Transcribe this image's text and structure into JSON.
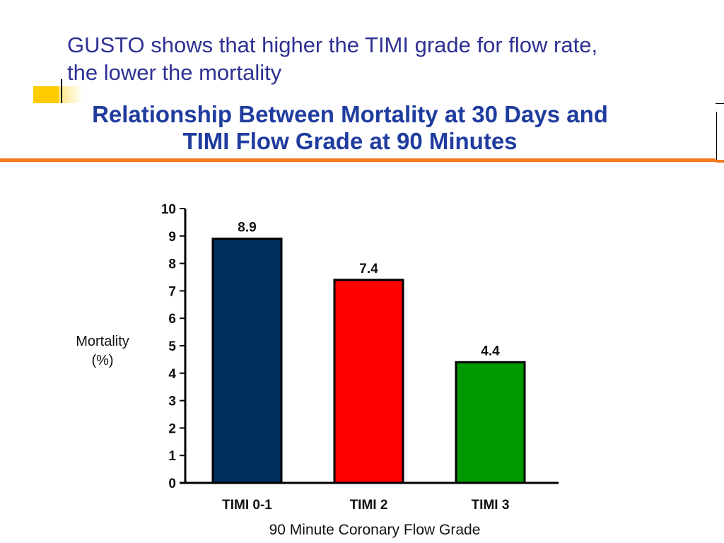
{
  "slide": {
    "heading_line1": "GUSTO shows that higher the TIMI grade for flow rate,",
    "heading_line2": "the lower the mortality"
  },
  "chart_data": {
    "type": "bar",
    "title_line1": "Relationship Between Mortality at 30 Days and",
    "title_line2": "TIMI Flow Grade at 90 Minutes",
    "categories": [
      "TIMI  0-1",
      "TIMI  2",
      "TIMI  3"
    ],
    "values": [
      8.9,
      7.4,
      4.4
    ],
    "value_labels": [
      "8.9",
      "7.4",
      "4.4"
    ],
    "colors": [
      "#00305e",
      "#ff0000",
      "#009900"
    ],
    "ylabel_line1": "Mortality",
    "ylabel_line2": "(%)",
    "xlabel": "90 Minute Coronary Flow Grade",
    "ylim": [
      0,
      10
    ],
    "yticks": [
      "0",
      "1",
      "2",
      "3",
      "4",
      "5",
      "6",
      "7",
      "8",
      "9",
      "10"
    ],
    "grid": false
  }
}
